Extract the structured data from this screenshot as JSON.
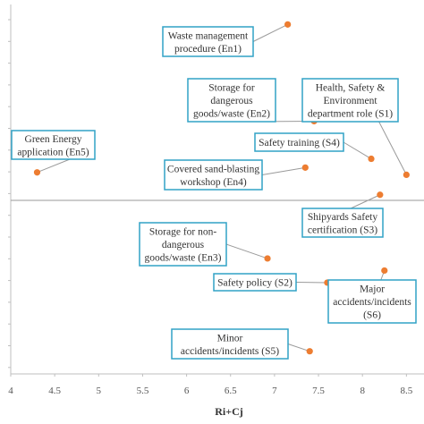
{
  "chart_data": {
    "type": "scatter",
    "title": "",
    "xlabel": "Ri+Cj",
    "ylabel": "",
    "xlim": [
      4,
      8.7
    ],
    "xticks": [
      "4",
      "4.5",
      "5",
      "5.5",
      "6",
      "6.5",
      "7",
      "7.5",
      "8",
      "8.5"
    ],
    "ylim": [
      -2.3,
      2.45
    ],
    "y_zero_line": 0,
    "grid": false,
    "legend": "none",
    "marker_color": "#ED7D31",
    "callout_border_color": "#31A2C6",
    "points": [
      {
        "id": "en1",
        "x": 7.15,
        "y": 2.2,
        "label": "Waste management procedure (En1)"
      },
      {
        "id": "en2",
        "x": 7.45,
        "y": 0.99,
        "label": "Storage for dangerous goods/waste (En2)"
      },
      {
        "id": "s1",
        "x": 8.5,
        "y": 0.32,
        "label": "Health, Safety & Environment department role (S1)"
      },
      {
        "id": "s4",
        "x": 8.1,
        "y": 0.52,
        "label": "Safety training (S4)"
      },
      {
        "id": "en5",
        "x": 4.3,
        "y": 0.35,
        "label": "Green Energy application (En5)"
      },
      {
        "id": "en4",
        "x": 7.35,
        "y": 0.41,
        "label": "Covered sand-blasting workshop (En4)"
      },
      {
        "id": "s3",
        "x": 8.2,
        "y": 0.07,
        "label": "Shipyards Safety certification (S3)"
      },
      {
        "id": "en3",
        "x": 6.92,
        "y": -0.77,
        "label": "Storage for non-dangerous goods/waste (En3)"
      },
      {
        "id": "s2",
        "x": 7.6,
        "y": -1.09,
        "label": "Safety policy (S2)"
      },
      {
        "id": "s6",
        "x": 8.25,
        "y": -0.93,
        "label": "Major accidents/incidents (S6)"
      },
      {
        "id": "s5",
        "x": 7.4,
        "y": -2.0,
        "label": "Minor accidents/incidents (S5)"
      }
    ]
  },
  "callouts": {
    "en1": [
      "Waste management",
      "procedure (En1)"
    ],
    "en2": [
      "Storage for",
      "dangerous",
      "goods/waste (En2)"
    ],
    "s1": [
      "Health, Safety &",
      "Environment",
      "department role (S1)"
    ],
    "s4": [
      "Safety training (S4)"
    ],
    "en5": [
      "Green Energy",
      "application (En5)"
    ],
    "en4": [
      "Covered sand-blasting",
      "workshop (En4)"
    ],
    "s3": [
      "Shipyards Safety",
      "certification (S3)"
    ],
    "en3": [
      "Storage for non-",
      "dangerous",
      "goods/waste (En3)"
    ],
    "s2": [
      "Safety policy (S2)"
    ],
    "s6": [
      "Major",
      "accidents/incidents",
      "(S6)"
    ],
    "s5": [
      "Minor",
      "accidents/incidents (S5)"
    ]
  }
}
